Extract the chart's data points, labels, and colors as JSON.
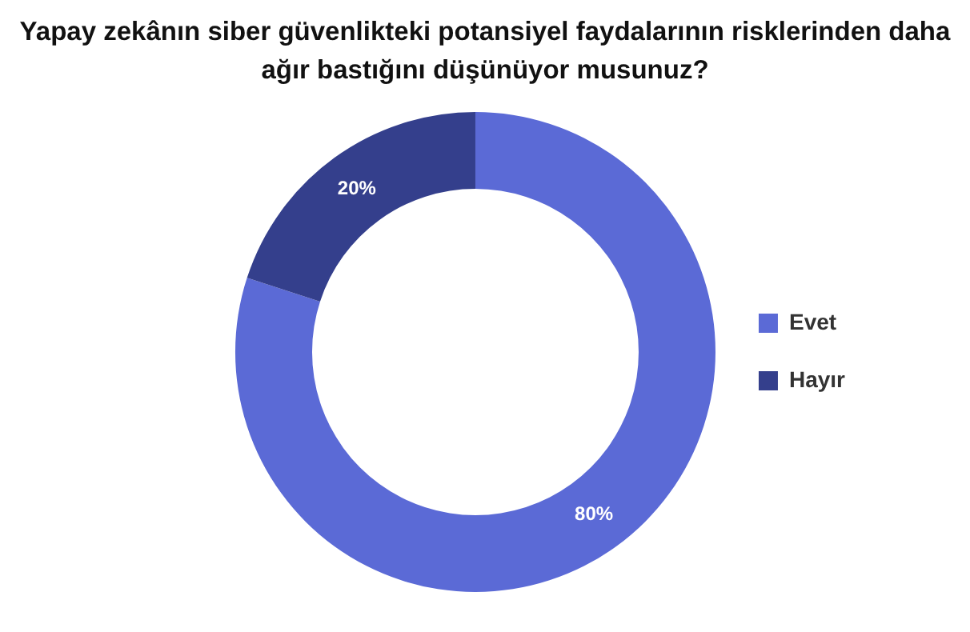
{
  "chart_data": {
    "type": "donut",
    "title": "Yapay zekânın siber güvenlikteki potansiyel faydalarının risklerinden daha ağır bastığını düşünüyor musunuz?",
    "categories": [
      "Evet",
      "Hayır"
    ],
    "values": [
      80,
      20
    ],
    "colors": [
      "#5b6ad6",
      "#343f8c"
    ],
    "value_labels": [
      "80%",
      "20%"
    ],
    "legend": "right"
  }
}
